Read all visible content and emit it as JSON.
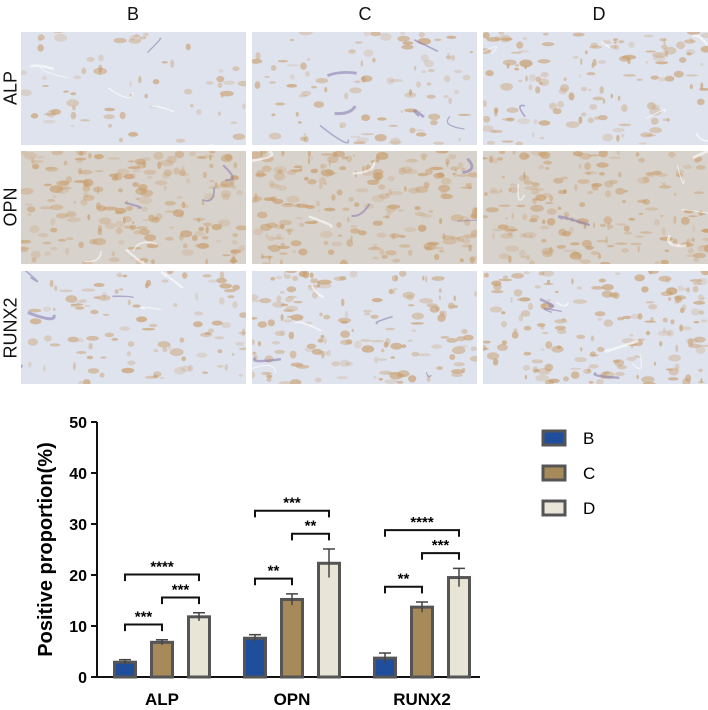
{
  "micrographs": {
    "columns": [
      "B",
      "C",
      "D"
    ],
    "rows": [
      "ALP",
      "OPN",
      "RUNX2"
    ]
  },
  "colors": {
    "B": "#1f4e9c",
    "C": "#a68a5a",
    "D": "#e8e4d6",
    "bar_edge": "#555555",
    "stain_background": "#dfe3ee",
    "stain_brown": "#c89d6b"
  },
  "chart_data": {
    "type": "bar",
    "categories": [
      "ALP",
      "OPN",
      "RUNX2"
    ],
    "series": [
      {
        "name": "B",
        "values": [
          2.9,
          7.6,
          3.7
        ],
        "errors": [
          0.5,
          0.7,
          1.0
        ]
      },
      {
        "name": "C",
        "values": [
          6.8,
          15.2,
          13.7
        ],
        "errors": [
          0.5,
          1.1,
          1.0
        ]
      },
      {
        "name": "D",
        "values": [
          11.8,
          22.3,
          19.5
        ],
        "errors": [
          0.8,
          2.8,
          1.8
        ]
      }
    ],
    "ylabel": "Positive proportion(%)",
    "ylim": [
      0,
      50
    ],
    "yticks": [
      0,
      10,
      20,
      30,
      40,
      50
    ],
    "legend": "top-right",
    "grid": false,
    "significance": [
      {
        "category": "ALP",
        "from": "B",
        "to": "C",
        "label": "***"
      },
      {
        "category": "ALP",
        "from": "C",
        "to": "D",
        "label": "***"
      },
      {
        "category": "ALP",
        "from": "B",
        "to": "D",
        "label": "****"
      },
      {
        "category": "OPN",
        "from": "B",
        "to": "C",
        "label": "**"
      },
      {
        "category": "OPN",
        "from": "C",
        "to": "D",
        "label": "**"
      },
      {
        "category": "OPN",
        "from": "B",
        "to": "D",
        "label": "***"
      },
      {
        "category": "RUNX2",
        "from": "B",
        "to": "C",
        "label": "**"
      },
      {
        "category": "RUNX2",
        "from": "C",
        "to": "D",
        "label": "***"
      },
      {
        "category": "RUNX2",
        "from": "B",
        "to": "D",
        "label": "****"
      }
    ]
  }
}
